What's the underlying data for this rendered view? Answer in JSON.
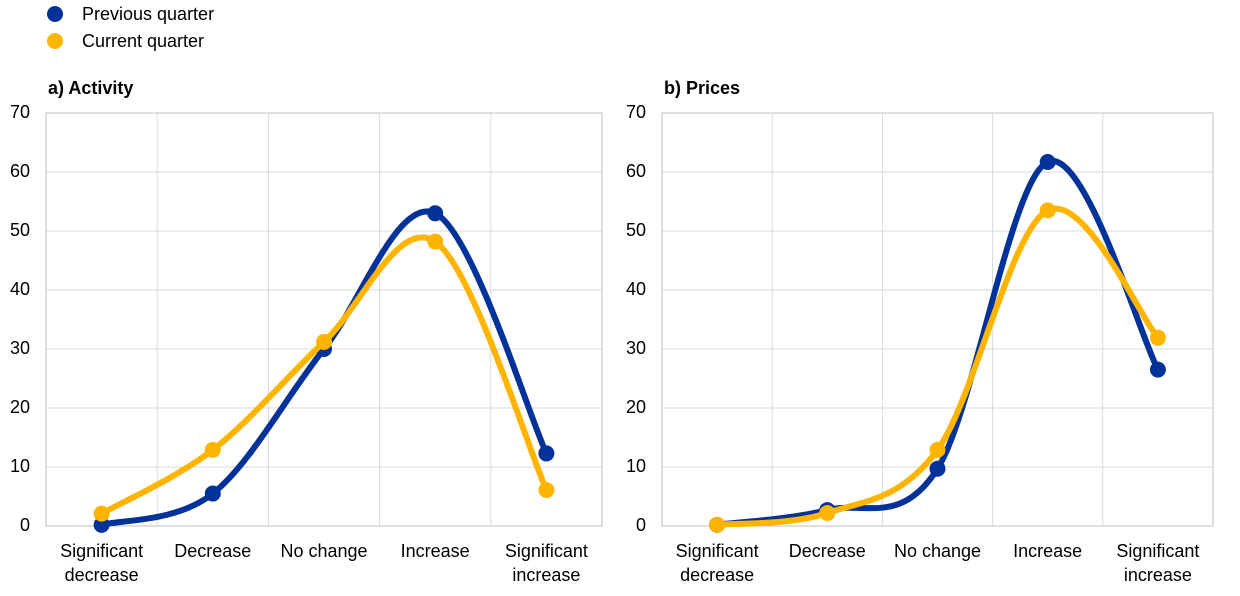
{
  "chart_data": [
    {
      "type": "line",
      "title": "a) Activity",
      "categories": [
        "Significant decrease",
        "Decrease",
        "No change",
        "Increase",
        "Significant increase"
      ],
      "series": [
        {
          "name": "Previous quarter",
          "color": "#003299",
          "values": [
            0.2,
            5.5,
            30,
            53,
            12.3
          ]
        },
        {
          "name": "Current quarter",
          "color": "#ffb400",
          "values": [
            2.1,
            12.9,
            31.2,
            48.2,
            6.1
          ]
        }
      ],
      "ylim": [
        0,
        70
      ],
      "yticks": [
        0,
        10,
        20,
        30,
        40,
        50,
        60,
        70
      ],
      "grid": true
    },
    {
      "type": "line",
      "title": "b) Prices",
      "categories": [
        "Significant decrease",
        "Decrease",
        "No change",
        "Increase",
        "Significant increase"
      ],
      "series": [
        {
          "color": "#003299",
          "values": [
            0.2,
            2.7,
            9.7,
            61.7,
            26.5
          ]
        },
        {
          "color": "#ffb400",
          "values": [
            0.2,
            2.2,
            12.9,
            53.5,
            31.9
          ]
        }
      ],
      "ylim": [
        0,
        70
      ],
      "yticks": [
        0,
        10,
        20,
        30,
        40,
        50,
        60,
        70
      ],
      "grid": true
    }
  ]
}
